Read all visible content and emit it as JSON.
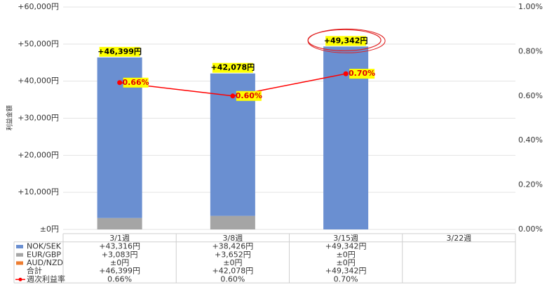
{
  "chart_data": {
    "type": "bar",
    "stacked": true,
    "y_label": "利益金額",
    "categories": [
      "3/1週",
      "3/8週",
      "3/15週",
      "3/22週"
    ],
    "series": [
      {
        "name": "NOK/SEK",
        "color": "#6a8fd1",
        "values": [
          43316,
          38426,
          49342,
          null
        ],
        "value_labels": [
          "+43,316円",
          "+38,426円",
          "+49,342円",
          null
        ]
      },
      {
        "name": "EUR/GBP",
        "color": "#a5a5a5",
        "values": [
          3083,
          3652,
          0,
          null
        ],
        "value_labels": [
          "+3,083円",
          "+3,652円",
          "±0円",
          null
        ]
      },
      {
        "name": "AUD/NZD",
        "color": "#ed7d31",
        "values": [
          0,
          0,
          0,
          null
        ],
        "value_labels": [
          "±0円",
          "±0円",
          "±0円",
          null
        ]
      },
      {
        "name": "週次利益率",
        "type": "line",
        "axis": "y2",
        "color": "#ff0000",
        "values": [
          0.66,
          0.6,
          0.7,
          null
        ],
        "value_labels": [
          "0.66%",
          "0.60%",
          "0.70%",
          null
        ]
      }
    ],
    "total": {
      "name": "合計",
      "values": [
        46399,
        42078,
        49342,
        null
      ],
      "value_labels": [
        "+46,399円",
        "+42,078円",
        "+49,342円",
        null
      ]
    },
    "ylim": [
      0,
      60000
    ],
    "yticks": [
      {
        "value": 0,
        "label": "±0円"
      },
      {
        "value": 10000,
        "label": "+10,000円"
      },
      {
        "value": 20000,
        "label": "+20,000円"
      },
      {
        "value": 30000,
        "label": "+30,000円"
      },
      {
        "value": 40000,
        "label": "+40,000円"
      },
      {
        "value": 50000,
        "label": "+50,000円"
      },
      {
        "value": 60000,
        "label": "+60,000円"
      }
    ],
    "y2lim": [
      0,
      1
    ],
    "y2ticks": [
      {
        "value": 0,
        "label": "0.00%"
      },
      {
        "value": 0.2,
        "label": "0.20%"
      },
      {
        "value": 0.4,
        "label": "0.40%"
      },
      {
        "value": 0.6,
        "label": "0.60%"
      },
      {
        "value": 0.8,
        "label": "0.80%"
      },
      {
        "value": 1,
        "label": "1.00%"
      }
    ],
    "grid": true
  }
}
